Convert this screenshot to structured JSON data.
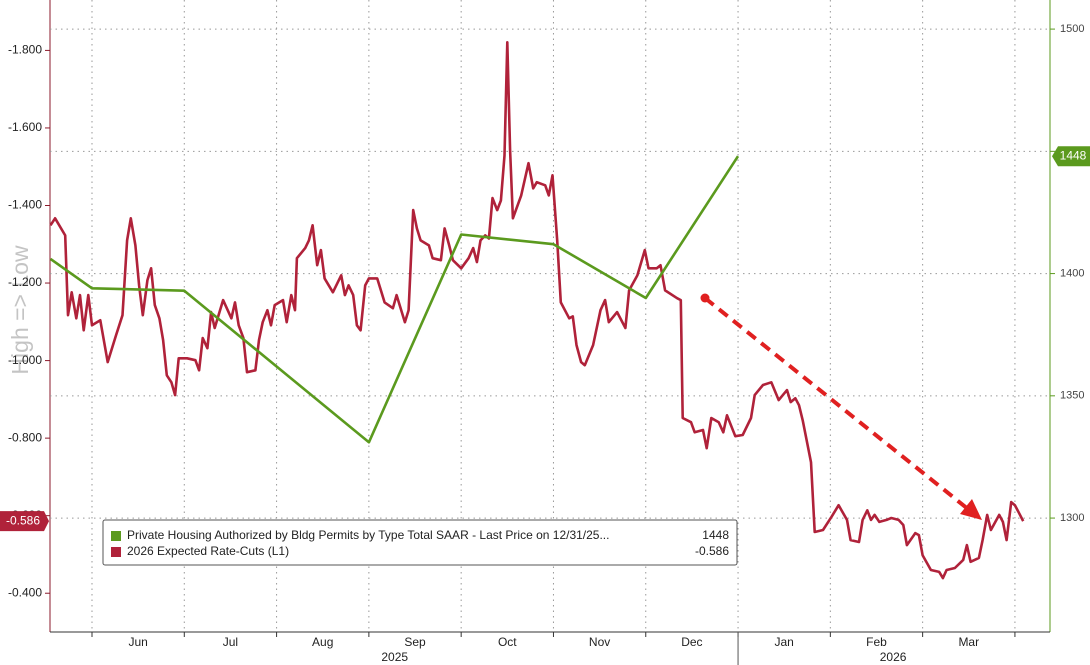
{
  "chart_data": {
    "type": "line",
    "y_axis_label": "High => Low",
    "xlim": [
      -0.455,
      10.38
    ],
    "xticks": [
      {
        "value": 0.5,
        "label": "Jun"
      },
      {
        "value": 1.5,
        "label": "Jul"
      },
      {
        "value": 2.5,
        "label": "Aug"
      },
      {
        "value": 3.5,
        "label": "Sep"
      },
      {
        "value": 4.5,
        "label": "Oct"
      },
      {
        "value": 5.5,
        "label": "Nov"
      },
      {
        "value": 6.5,
        "label": "Dec"
      },
      {
        "value": 7.5,
        "label": "Jan"
      },
      {
        "value": 8.5,
        "label": "Feb"
      },
      {
        "value": 9.5,
        "label": "Mar"
      }
    ],
    "year_labels": [
      {
        "value": 3.28,
        "label": "2025"
      },
      {
        "value": 8.68,
        "label": "2026"
      }
    ],
    "year_divider": 7,
    "ylim": [
      -0.3,
      -1.93
    ],
    "yticks": [
      {
        "value": -1.8,
        "label": "-1.800"
      },
      {
        "value": -1.6,
        "label": "-1.600"
      },
      {
        "value": -1.4,
        "label": "-1.400"
      },
      {
        "value": -1.2,
        "label": "-1.200"
      },
      {
        "value": -1.0,
        "label": "-1.000"
      },
      {
        "value": -0.8,
        "label": "-0.800"
      },
      {
        "value": -0.6,
        "label": "-0.600"
      },
      {
        "value": -0.4,
        "label": "-0.400"
      }
    ],
    "y2lim": [
      1253.4,
      1511.9
    ],
    "y2ticks": [
      1300,
      1350,
      1400,
      1450,
      1500
    ],
    "grid": true,
    "series": [
      {
        "name": "Private Housing Authorized by Bldg Permits by Type Total SAAR - Last Price on 12/31/25...",
        "color": "#5b9a1e",
        "axis": "y2",
        "x": [
          -0.45,
          0,
          1,
          3,
          4,
          5,
          6,
          7
        ],
        "values": [
          1406,
          1394,
          1393,
          1331,
          1416,
          1412,
          1390,
          1448
        ]
      },
      {
        "name": "2026 Expected Rate-Cuts (L1)",
        "color": "#b0223a",
        "axis": "y",
        "x": [
          -0.45,
          -0.4,
          -0.29,
          -0.26,
          -0.22,
          -0.17,
          -0.13,
          -0.09,
          -0.04,
          0,
          0.09,
          0.17,
          0.26,
          0.33,
          0.38,
          0.42,
          0.47,
          0.51,
          0.55,
          0.6,
          0.64,
          0.68,
          0.73,
          0.77,
          0.81,
          0.86,
          0.9,
          0.94,
          1.03,
          1.12,
          1.16,
          1.2,
          1.25,
          1.29,
          1.33,
          1.42,
          1.51,
          1.55,
          1.59,
          1.64,
          1.68,
          1.77,
          1.81,
          1.85,
          1.9,
          1.94,
          1.98,
          2.07,
          2.11,
          2.16,
          2.2,
          2.22,
          2.31,
          2.35,
          2.39,
          2.44,
          2.48,
          2.52,
          2.61,
          2.7,
          2.74,
          2.78,
          2.83,
          2.87,
          2.91,
          2.96,
          3,
          3.09,
          3.17,
          3.26,
          3.3,
          3.39,
          3.43,
          3.48,
          3.52,
          3.56,
          3.65,
          3.69,
          3.78,
          3.82,
          3.87,
          3.91,
          4,
          4.08,
          4.13,
          4.17,
          4.21,
          4.26,
          4.3,
          4.34,
          4.39,
          4.43,
          4.47,
          4.5,
          4.53,
          4.56,
          4.65,
          4.73,
          4.78,
          4.82,
          4.91,
          4.95,
          4.99,
          5.04,
          5.08,
          5.17,
          5.21,
          5.25,
          5.3,
          5.34,
          5.43,
          5.51,
          5.56,
          5.6,
          5.69,
          5.78,
          5.82,
          5.91,
          5.99,
          6.03,
          6.12,
          6.16,
          6.21,
          6.34,
          6.38,
          6.4,
          6.49,
          6.53,
          6.62,
          6.66,
          6.71,
          6.79,
          6.84,
          6.88,
          6.97,
          7.05,
          7.14,
          7.18,
          7.27,
          7.36,
          7.44,
          7.53,
          7.57,
          7.62,
          7.66,
          7.7,
          7.79,
          7.83,
          7.92,
          8.01,
          8.09,
          8.18,
          8.22,
          8.31,
          8.35,
          8.4,
          8.44,
          8.48,
          8.53,
          8.61,
          8.66,
          8.74,
          8.79,
          8.83,
          8.92,
          8.96,
          9,
          9.09,
          9.18,
          9.22,
          9.26,
          9.35,
          9.44,
          9.48,
          9.52,
          9.61,
          9.65,
          9.7,
          9.74,
          9.83,
          9.87,
          9.91,
          9.96,
          10,
          10.04,
          10.09
        ],
        "values": [
          -1.349,
          -1.367,
          -1.323,
          -1.117,
          -1.176,
          -1.109,
          -1.169,
          -1.078,
          -1.169,
          -1.091,
          -1.104,
          -0.996,
          -1.065,
          -1.117,
          -1.31,
          -1.367,
          -1.297,
          -1.194,
          -1.117,
          -1.207,
          -1.238,
          -1.143,
          -1.109,
          -1.053,
          -0.962,
          -0.944,
          -0.911,
          -1.006,
          -1.006,
          -1.001,
          -0.975,
          -1.058,
          -1.032,
          -1.125,
          -1.084,
          -1.156,
          -1.109,
          -1.15,
          -1.091,
          -1.058,
          -0.97,
          -0.975,
          -1.053,
          -1.099,
          -1.13,
          -1.091,
          -1.143,
          -1.156,
          -1.099,
          -1.169,
          -1.13,
          -1.264,
          -1.29,
          -1.31,
          -1.349,
          -1.246,
          -1.285,
          -1.212,
          -1.176,
          -1.22,
          -1.169,
          -1.194,
          -1.169,
          -1.091,
          -1.078,
          -1.194,
          -1.212,
          -1.212,
          -1.15,
          -1.135,
          -1.169,
          -1.099,
          -1.13,
          -1.388,
          -1.341,
          -1.31,
          -1.297,
          -1.264,
          -1.259,
          -1.341,
          -1.297,
          -1.259,
          -1.238,
          -1.264,
          -1.29,
          -1.254,
          -1.31,
          -1.323,
          -1.315,
          -1.419,
          -1.388,
          -1.413,
          -1.529,
          -1.821,
          -1.542,
          -1.367,
          -1.426,
          -1.509,
          -1.444,
          -1.46,
          -1.452,
          -1.426,
          -1.478,
          -1.31,
          -1.15,
          -1.109,
          -1.114,
          -1.04,
          -0.996,
          -0.988,
          -1.04,
          -1.13,
          -1.156,
          -1.099,
          -1.125,
          -1.084,
          -1.181,
          -1.22,
          -1.285,
          -1.238,
          -1.238,
          -1.246,
          -1.181,
          -1.161,
          -1.156,
          -0.852,
          -0.841,
          -0.815,
          -0.821,
          -0.774,
          -0.852,
          -0.841,
          -0.815,
          -0.859,
          -0.805,
          -0.808,
          -0.852,
          -0.911,
          -0.937,
          -0.944,
          -0.898,
          -0.924,
          -0.893,
          -0.903,
          -0.885,
          -0.846,
          -0.738,
          -0.558,
          -0.563,
          -0.596,
          -0.627,
          -0.589,
          -0.537,
          -0.532,
          -0.589,
          -0.614,
          -0.589,
          -0.602,
          -0.584,
          -0.589,
          -0.594,
          -0.589,
          -0.576,
          -0.524,
          -0.555,
          -0.55,
          -0.498,
          -0.46,
          -0.455,
          -0.439,
          -0.46,
          -0.465,
          -0.486,
          -0.524,
          -0.481,
          -0.491,
          -0.537,
          -0.602,
          -0.563,
          -0.602,
          -0.584,
          -0.537,
          -0.635,
          -0.627,
          -0.609,
          -0.586
        ]
      }
    ]
  }
}
